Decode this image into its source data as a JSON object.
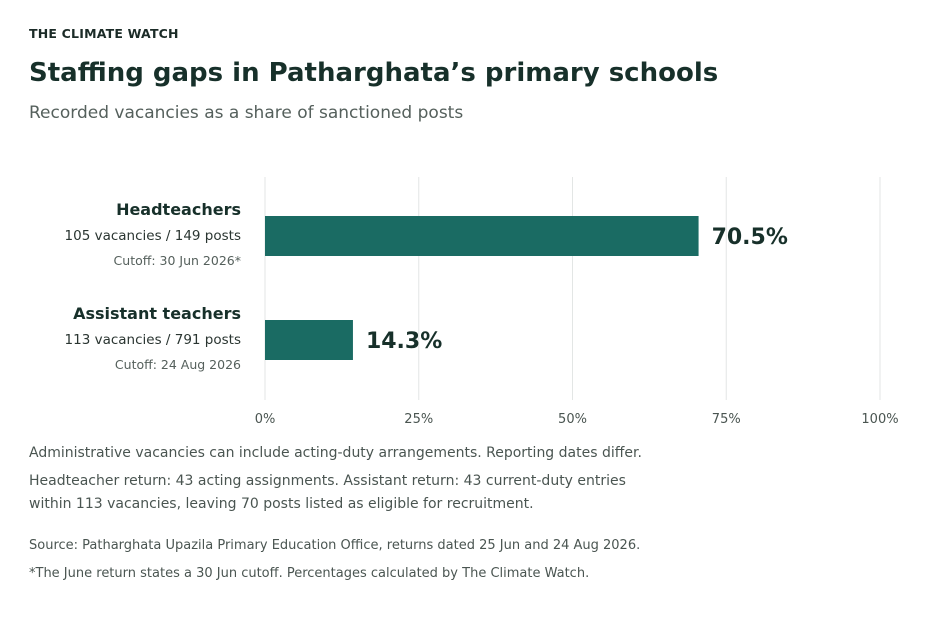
{
  "publication": "THE CLIMATE WATCH",
  "title": "Staffing gaps in Patharghata’s primary schools",
  "subtitle": "Recorded vacancies as a share of sanctioned posts",
  "notes": {
    "line1": "Administrative vacancies can include acting-duty arrangements. Reporting dates differ.",
    "line2": "Headteacher return: 43 acting assignments. Assistant return: 43 current-duty entries",
    "line3": "within 113 vacancies, leaving 70 posts listed as eligible for recruitment."
  },
  "source": "Source: Patharghata Upazila Primary Education Office, returns dated 25 Jun and 24 Aug 2026.",
  "footnote": "*The June return states a 30 Jun cutoff. Percentages calculated by The Climate Watch.",
  "chart_data": {
    "type": "bar",
    "orientation": "horizontal",
    "categories": [
      "Headteachers",
      "Assistant teachers"
    ],
    "values": [
      70.5,
      14.3
    ],
    "value_labels": [
      "70.5%",
      "14.3%"
    ],
    "details": [
      "105 vacancies / 149 posts",
      "113 vacancies / 791 posts"
    ],
    "cutoffs": [
      "Cutoff: 30 Jun 2026*",
      "Cutoff: 24 Aug 2026"
    ],
    "xlim": [
      0,
      100
    ],
    "xticks": [
      0,
      25,
      50,
      75,
      100
    ],
    "xtick_labels": [
      "0%",
      "25%",
      "50%",
      "75%",
      "100%"
    ],
    "grid": true,
    "bar_color": "#1a6b63"
  }
}
